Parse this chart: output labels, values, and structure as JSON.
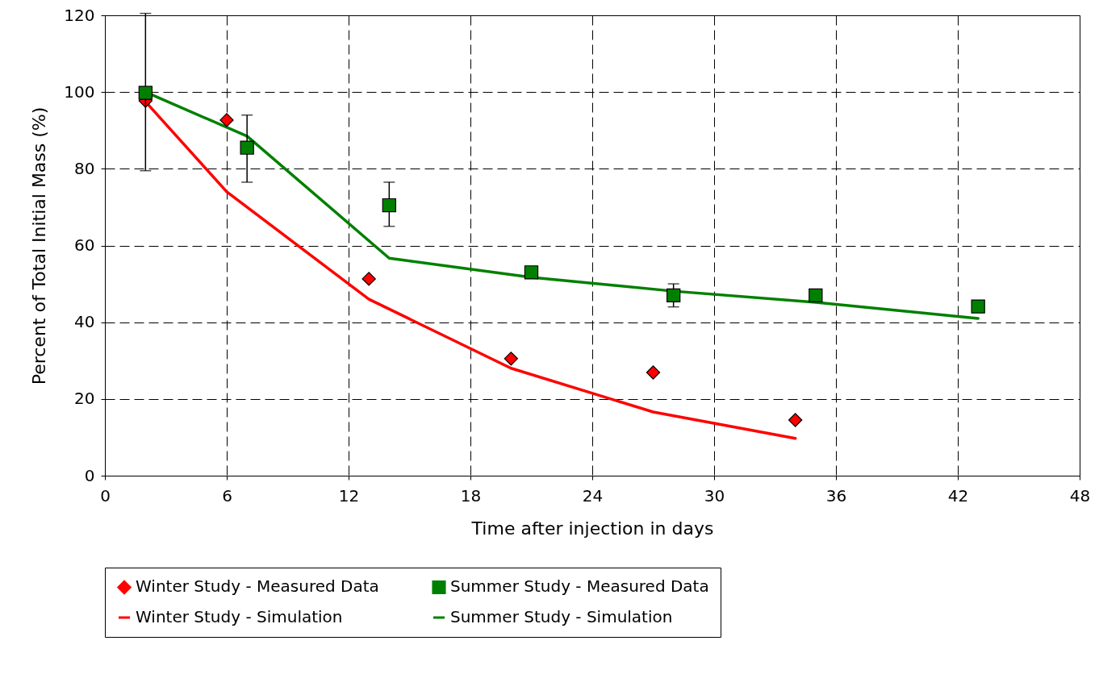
{
  "chart_data": {
    "type": "scatter",
    "xlabel": "Time after injection in days",
    "ylabel": "Percent of Total Initial Mass (%)",
    "xlim": [
      0,
      48
    ],
    "xticks": [
      0,
      6,
      12,
      18,
      24,
      30,
      36,
      42,
      48
    ],
    "ylim": [
      0,
      120
    ],
    "yticks": [
      0,
      20,
      40,
      60,
      80,
      100,
      120
    ],
    "grid": true,
    "legend": "bottom",
    "series": [
      {
        "name": "Winter Study - Measured Data",
        "marker": "diamond",
        "color": "#ff0000",
        "x": [
          2,
          6,
          13,
          20,
          27,
          34
        ],
        "values": [
          97.7,
          92.7,
          51.3,
          30.5,
          26.9,
          14.5
        ]
      },
      {
        "name": "Summer Study - Measured Data",
        "marker": "square",
        "color": "#008000",
        "x": [
          2,
          7,
          14,
          21,
          28,
          35,
          43
        ],
        "values": [
          99.8,
          85.5,
          70.5,
          53,
          47,
          47,
          44.1
        ],
        "errors": [
          [
            79.5,
            120.5
          ],
          [
            76.5,
            94
          ],
          [
            65,
            76.5
          ],
          [
            51.5,
            54.5
          ],
          [
            44,
            50
          ],
          null,
          null
        ]
      },
      {
        "name": "Winter Study - Simulation",
        "type": "line",
        "marker": "none",
        "line_style": "solid",
        "color": "#ff0000",
        "x": [
          2,
          6,
          13,
          20,
          27,
          34
        ],
        "values": [
          97.5,
          74,
          46,
          28,
          16.6,
          9.7
        ]
      },
      {
        "name": "Summer Study - Simulation",
        "type": "line",
        "marker": "none",
        "line_style": "solid",
        "color": "#008000",
        "x": [
          2,
          7,
          14,
          21,
          28,
          35,
          43
        ],
        "values": [
          100,
          88.5,
          56.7,
          51.7,
          48.1,
          45.2,
          41
        ]
      }
    ]
  }
}
